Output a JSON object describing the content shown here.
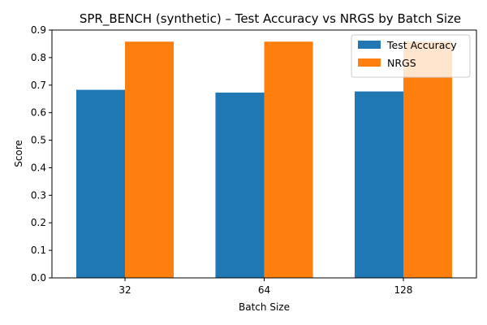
{
  "chart_data": {
    "type": "bar",
    "title": "SPR_BENCH (synthetic) – Test Accuracy vs NRGS by Batch Size",
    "xlabel": "Batch Size",
    "ylabel": "Score",
    "categories": [
      "32",
      "64",
      "128"
    ],
    "ylim": [
      0,
      0.9
    ],
    "yticks": [
      0.0,
      0.1,
      0.2,
      0.3,
      0.4,
      0.5,
      0.6,
      0.7,
      0.8,
      0.9
    ],
    "ytick_labels": [
      "0.0",
      "0.1",
      "0.2",
      "0.3",
      "0.4",
      "0.5",
      "0.6",
      "0.7",
      "0.8",
      "0.9"
    ],
    "series": [
      {
        "name": "Test Accuracy",
        "values": [
          0.683,
          0.673,
          0.677
        ],
        "color": "#1f77b4"
      },
      {
        "name": "NRGS",
        "values": [
          0.858,
          0.858,
          0.858
        ],
        "color": "#ff7f0e"
      }
    ],
    "legend": {
      "position": "top-right"
    },
    "grid": false
  }
}
